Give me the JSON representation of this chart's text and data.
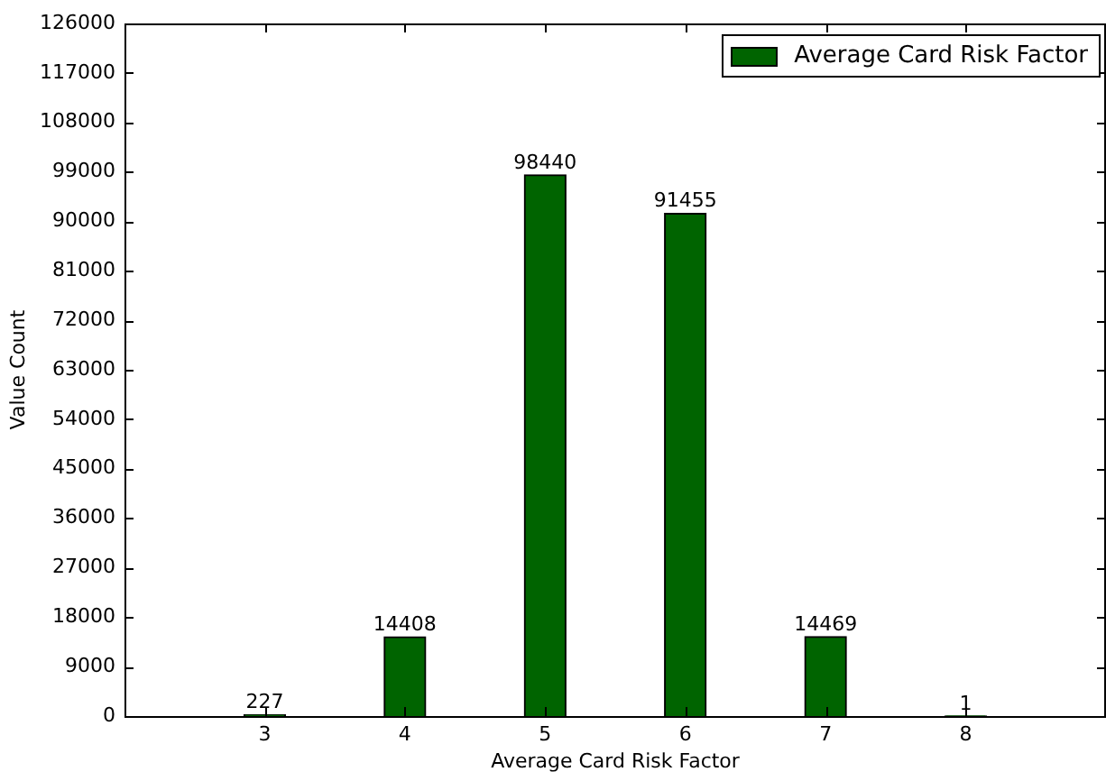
{
  "chart_data": {
    "type": "bar",
    "x": [
      3,
      4,
      5,
      6,
      7,
      8
    ],
    "series": [
      {
        "name": "Average Card Risk Factor",
        "color": "#006400",
        "values": [
          227,
          14408,
          98440,
          91455,
          14469,
          1
        ]
      }
    ],
    "xlabel": "Average Card Risk Factor",
    "ylabel": "Value Count",
    "xlim": [
      2,
      9
    ],
    "xticks": [
      3,
      4,
      5,
      6,
      7,
      8
    ],
    "ylim": [
      0,
      126000
    ],
    "yticks": [
      0,
      9000,
      18000,
      27000,
      36000,
      45000,
      54000,
      63000,
      72000,
      81000,
      90000,
      99000,
      108000,
      117000,
      126000
    ],
    "data_labels": true,
    "legend": "top right"
  }
}
